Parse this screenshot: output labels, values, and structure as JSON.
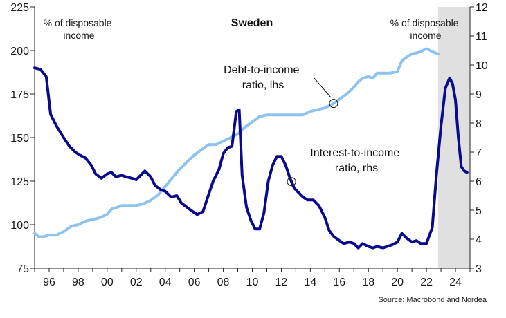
{
  "chart_data": {
    "type": "line",
    "title": "Sweden",
    "ylabel_left": [
      "% of disposable",
      "income"
    ],
    "ylabel_right": [
      "% of disposable",
      "income"
    ],
    "source": "Source: Macrobond and Nordea",
    "x_range": [
      1995,
      2025
    ],
    "ylim_left": [
      75,
      225
    ],
    "ylim_right": [
      3,
      12
    ],
    "left_ticks": [
      75,
      100,
      125,
      150,
      175,
      200,
      225
    ],
    "right_ticks": [
      3,
      4,
      5,
      6,
      7,
      8,
      9,
      10,
      11,
      12
    ],
    "x_ticks": [
      {
        "year": 1996,
        "label": "96"
      },
      {
        "year": 1998,
        "label": "98"
      },
      {
        "year": 2000,
        "label": "00"
      },
      {
        "year": 2002,
        "label": "02"
      },
      {
        "year": 2004,
        "label": "04"
      },
      {
        "year": 2006,
        "label": "06"
      },
      {
        "year": 2008,
        "label": "08"
      },
      {
        "year": 2010,
        "label": "10"
      },
      {
        "year": 2012,
        "label": "12"
      },
      {
        "year": 2014,
        "label": "14"
      },
      {
        "year": 2016,
        "label": "16"
      },
      {
        "year": 2018,
        "label": "18"
      },
      {
        "year": 2020,
        "label": "20"
      },
      {
        "year": 2022,
        "label": "22"
      },
      {
        "year": 2024,
        "label": "24"
      }
    ],
    "shaded_region": {
      "x_start": 2022.8,
      "x_end": 2025.3,
      "color": "#e0e0e0"
    },
    "series": [
      {
        "name": "Debt-to-income ratio, lhs",
        "axis": "left",
        "color": "#8fc3ef",
        "label_lines": [
          "Debt-to-income",
          "ratio, lhs"
        ],
        "marker_at": 2015.6,
        "x": [
          1995.0,
          1995.3,
          1995.6,
          1996.0,
          1996.5,
          1997.0,
          1997.5,
          1998.0,
          1998.5,
          1999.0,
          1999.5,
          2000.0,
          2000.3,
          2000.7,
          2001.0,
          2001.5,
          2002.0,
          2002.5,
          2003.0,
          2003.5,
          2004.0,
          2004.5,
          2005.0,
          2005.5,
          2006.0,
          2006.5,
          2007.0,
          2007.5,
          2008.0,
          2008.5,
          2009.0,
          2009.5,
          2010.0,
          2010.5,
          2011.0,
          2011.5,
          2012.0,
          2012.5,
          2013.0,
          2013.5,
          2014.0,
          2014.5,
          2015.0,
          2015.5,
          2016.0,
          2016.5,
          2017.0,
          2017.3,
          2017.6,
          2018.0,
          2018.3,
          2018.6,
          2019.0,
          2019.5,
          2020.0,
          2020.3,
          2020.6,
          2021.0,
          2021.5,
          2022.0,
          2022.5,
          2022.8
        ],
        "values": [
          95,
          93,
          93,
          94,
          94,
          96,
          99,
          100,
          102,
          103,
          104,
          106,
          109,
          110,
          111,
          111,
          111,
          112,
          114,
          117,
          122,
          127,
          132,
          136,
          140,
          143,
          146,
          146,
          148,
          150,
          152,
          156,
          159,
          162,
          163,
          163,
          163,
          163,
          163,
          163,
          165,
          166,
          167,
          169,
          172,
          175,
          179,
          182,
          184,
          185,
          184,
          187,
          187,
          187,
          188,
          194,
          196,
          198,
          199,
          201,
          199,
          198
        ]
      },
      {
        "name": "Interest-to-income ratio, rhs",
        "axis": "right",
        "color": "#0a0a8c",
        "label_lines": [
          "Interest-to-income",
          "ratio, rhs"
        ],
        "marker_at": 2012.7,
        "x": [
          1995.0,
          1995.4,
          1995.8,
          1996.1,
          1996.5,
          1997.0,
          1997.4,
          1997.8,
          1998.1,
          1998.5,
          1998.9,
          1999.2,
          1999.6,
          2000.0,
          2000.3,
          2000.6,
          2001.0,
          2001.3,
          2001.7,
          2002.0,
          2002.3,
          2002.6,
          2003.0,
          2003.3,
          2003.7,
          2004.0,
          2004.4,
          2004.8,
          2005.1,
          2005.5,
          2005.9,
          2006.2,
          2006.6,
          2007.0,
          2007.3,
          2007.7,
          2008.0,
          2008.3,
          2008.6,
          2008.9,
          2009.1,
          2009.3,
          2009.6,
          2009.9,
          2010.2,
          2010.5,
          2010.8,
          2011.1,
          2011.4,
          2011.7,
          2012.0,
          2012.3,
          2012.6,
          2012.9,
          2013.2,
          2013.5,
          2013.8,
          2014.2,
          2014.6,
          2015.0,
          2015.3,
          2015.6,
          2016.0,
          2016.3,
          2016.7,
          2017.0,
          2017.3,
          2017.6,
          2018.0,
          2018.3,
          2018.6,
          2019.0,
          2019.3,
          2019.6,
          2020.0,
          2020.3,
          2020.6,
          2021.0,
          2021.3,
          2021.6,
          2022.0,
          2022.4,
          2022.7,
          2023.0,
          2023.3,
          2023.6,
          2023.8,
          2024.0,
          2024.2,
          2024.4,
          2024.6,
          2024.8
        ],
        "values": [
          9.9,
          9.85,
          9.6,
          8.3,
          7.9,
          7.5,
          7.2,
          7.0,
          6.9,
          6.8,
          6.55,
          6.25,
          6.1,
          6.25,
          6.3,
          6.15,
          6.2,
          6.15,
          6.1,
          6.05,
          6.2,
          6.35,
          6.15,
          5.85,
          5.7,
          5.65,
          5.45,
          5.5,
          5.25,
          5.1,
          4.95,
          4.85,
          4.95,
          5.55,
          6.0,
          6.4,
          6.95,
          7.15,
          7.2,
          8.4,
          8.45,
          6.2,
          5.1,
          4.65,
          4.35,
          4.35,
          4.9,
          6.0,
          6.55,
          6.85,
          6.85,
          6.55,
          6.1,
          5.75,
          5.6,
          5.45,
          5.35,
          5.35,
          5.15,
          4.75,
          4.3,
          4.1,
          3.95,
          3.85,
          3.9,
          3.85,
          3.7,
          3.85,
          3.75,
          3.7,
          3.75,
          3.7,
          3.75,
          3.8,
          3.9,
          4.2,
          4.05,
          3.9,
          3.95,
          3.85,
          3.85,
          4.4,
          6.3,
          7.9,
          9.2,
          9.55,
          9.35,
          8.8,
          7.5,
          6.5,
          6.35,
          6.3
        ]
      }
    ]
  }
}
